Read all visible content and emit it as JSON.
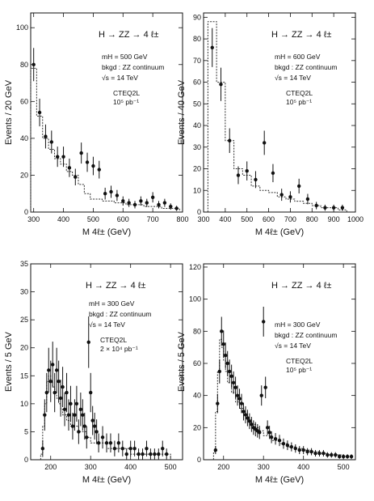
{
  "chart_data": [
    {
      "type": "scatter",
      "process": "H → ZZ → 4 ℓ±",
      "annotations": [
        "mH = 500 GeV",
        "bkgd : ZZ continuum",
        "√s = 14 TeV",
        "CTEQ2L",
        "10⁵ pb⁻¹"
      ],
      "xlabel": "M 4ℓ±  (GeV)",
      "ylabel": "Events / 20 GeV",
      "xlim": [
        290,
        800
      ],
      "ylim": [
        0,
        108
      ],
      "xticks": [
        300,
        400,
        500,
        600,
        700,
        800
      ],
      "yticks": [
        0,
        20,
        40,
        60,
        80,
        100
      ],
      "points": {
        "x": [
          300,
          320,
          340,
          360,
          380,
          400,
          420,
          440,
          460,
          480,
          500,
          520,
          540,
          560,
          580,
          600,
          620,
          640,
          660,
          680,
          700,
          720,
          740,
          760,
          780
        ],
        "y": [
          80,
          54,
          41,
          38,
          30,
          30,
          24,
          19,
          32,
          27,
          25,
          23,
          10,
          11,
          9,
          6,
          5,
          4,
          6,
          5,
          8,
          4,
          5,
          3,
          2
        ],
        "err": [
          9,
          7.5,
          6.5,
          6.2,
          5.5,
          5.5,
          5,
          4.5,
          5.7,
          5.2,
          5,
          4.8,
          3.2,
          3.3,
          3,
          2.5,
          2.2,
          2,
          2.5,
          2.2,
          2.8,
          2,
          2.2,
          1.7,
          1.4
        ]
      },
      "background": {
        "edges": [
          290,
          310,
          330,
          350,
          370,
          390,
          410,
          430,
          450,
          470,
          490,
          510,
          530,
          550,
          570,
          590,
          610,
          630,
          650,
          670,
          690,
          710,
          730,
          750,
          770,
          790
        ],
        "values": [
          78,
          52,
          40,
          34,
          29,
          26,
          22,
          20,
          15,
          10,
          7,
          7,
          6,
          6,
          5,
          5,
          4,
          4,
          4,
          3,
          3,
          3,
          2,
          2,
          2
        ]
      }
    },
    {
      "type": "scatter",
      "process": "H → ZZ → 4 ℓ±",
      "annotations": [
        "mH = 600 GeV",
        "bkgd : ZZ continuum",
        "√s = 14 TeV",
        "CTEQ2L",
        "10⁵ pb⁻¹"
      ],
      "xlabel": "M 4ℓ±  (GeV)",
      "ylabel": "Events / 40 GeV",
      "xlim": [
        300,
        1000
      ],
      "ylim": [
        0,
        92
      ],
      "xticks": [
        300,
        400,
        500,
        600,
        700,
        800,
        900,
        1000
      ],
      "yticks": [
        0,
        10,
        20,
        30,
        40,
        50,
        60,
        70,
        80,
        90
      ],
      "points": {
        "x": [
          340,
          380,
          420,
          460,
          500,
          540,
          580,
          620,
          660,
          700,
          740,
          780,
          820,
          860,
          900,
          940
        ],
        "y": [
          76,
          59,
          33,
          17,
          19,
          15,
          32,
          18,
          8,
          7,
          12,
          6,
          3,
          2,
          2,
          2
        ],
        "err": [
          9,
          7.7,
          5.7,
          4.1,
          4.4,
          3.9,
          5.6,
          4.2,
          2.8,
          2.6,
          3.4,
          2.4,
          1.7,
          1.4,
          1.4,
          1.4
        ]
      },
      "background": {
        "edges": [
          320,
          360,
          400,
          440,
          480,
          520,
          560,
          600,
          640,
          680,
          720,
          760,
          800,
          840,
          880,
          920,
          960
        ],
        "values": [
          88,
          60,
          33,
          20,
          17,
          12,
          10,
          9,
          7,
          6,
          5,
          4,
          3,
          2,
          2,
          1
        ]
      }
    },
    {
      "type": "scatter",
      "process": "H → ZZ → 4 ℓ±",
      "annotations": [
        "mH = 300 GeV",
        "bkgd : ZZ continuum",
        "√s = 14 TeV",
        "CTEQ2L",
        "2 × 10⁴ pb⁻¹"
      ],
      "xlabel": "M 4ℓ±  (GeV)",
      "ylabel": "Events / 5 GeV",
      "xlim": [
        150,
        530
      ],
      "ylim": [
        0,
        35
      ],
      "xticks": [
        200,
        300,
        400,
        500
      ],
      "yticks": [
        0,
        5,
        10,
        15,
        20,
        25,
        30,
        35
      ],
      "points": {
        "x": [
          180,
          185,
          190,
          195,
          200,
          205,
          210,
          215,
          220,
          225,
          230,
          235,
          240,
          245,
          250,
          255,
          260,
          265,
          270,
          275,
          280,
          285,
          290,
          295,
          300,
          305,
          310,
          315,
          320,
          330,
          340,
          350,
          360,
          370,
          380,
          390,
          400,
          410,
          420,
          430,
          440,
          450,
          460,
          470,
          480,
          490
        ],
        "y": [
          2,
          8,
          12,
          16,
          14,
          17,
          12,
          16,
          14,
          11,
          13,
          9,
          12,
          8,
          10,
          6,
          8,
          10,
          5,
          9,
          8,
          6,
          4,
          21,
          12,
          7,
          6,
          5,
          3,
          4,
          3,
          3,
          2,
          3,
          2,
          1,
          2,
          2,
          1,
          1,
          2,
          1,
          1,
          1,
          2,
          1
        ],
        "err": [
          1.5,
          2.8,
          3.5,
          4,
          3.7,
          4.1,
          3.5,
          4,
          3.7,
          3.3,
          3.6,
          3,
          3.5,
          2.8,
          3.2,
          2.4,
          2.8,
          3.2,
          2.2,
          3,
          2.8,
          2.4,
          2,
          4.6,
          3.5,
          2.6,
          2.4,
          2.2,
          1.7,
          2,
          1.7,
          1.7,
          1.4,
          1.7,
          1.4,
          1,
          1.4,
          1.4,
          1,
          1,
          1.4,
          1,
          1,
          1,
          1.4,
          1
        ]
      },
      "background": {
        "edges": [
          175,
          180,
          185,
          190,
          195,
          200,
          205,
          210,
          215,
          220,
          225,
          230,
          240,
          250,
          260,
          270,
          280,
          290,
          300,
          320,
          340,
          360,
          380,
          400,
          420,
          440,
          460,
          480,
          500
        ],
        "values": [
          1,
          6,
          10,
          14,
          15,
          14,
          13,
          12,
          11,
          10,
          9,
          8,
          7,
          6,
          6,
          5,
          5,
          4,
          3,
          3,
          2,
          2,
          2,
          1,
          1,
          1,
          1,
          1
        ]
      }
    },
    {
      "type": "scatter",
      "process": "H → ZZ → 4 ℓ±",
      "annotations": [
        "mH = 300 GeV",
        "bkgd : ZZ continuum",
        "√s = 14 TeV",
        "CTEQ2L",
        "10⁵ pb⁻¹"
      ],
      "xlabel": "M 4ℓ±  (GeV)",
      "ylabel": "Events / 5 GeV",
      "xlim": [
        150,
        530
      ],
      "ylim": [
        0,
        122
      ],
      "xticks": [
        200,
        300,
        400,
        500
      ],
      "yticks": [
        0,
        20,
        40,
        60,
        80,
        100,
        120
      ],
      "points": {
        "x": [
          180,
          185,
          190,
          195,
          200,
          205,
          210,
          215,
          220,
          225,
          230,
          235,
          240,
          245,
          250,
          255,
          260,
          265,
          270,
          275,
          280,
          285,
          290,
          295,
          300,
          305,
          310,
          315,
          320,
          330,
          340,
          350,
          360,
          370,
          380,
          390,
          400,
          410,
          420,
          430,
          440,
          450,
          460,
          470,
          480,
          490,
          500,
          510,
          520
        ],
        "y": [
          6,
          35,
          55,
          80,
          72,
          65,
          60,
          55,
          52,
          48,
          45,
          40,
          38,
          35,
          30,
          28,
          26,
          24,
          22,
          20,
          19,
          18,
          17,
          40,
          86,
          45,
          20,
          17,
          14,
          13,
          12,
          10,
          9,
          8,
          7,
          6,
          6,
          5,
          5,
          4,
          4,
          4,
          3,
          3,
          3,
          2,
          2,
          2,
          2
        ],
        "err": [
          2.5,
          6,
          7.5,
          9,
          8.5,
          8,
          7.7,
          7.4,
          7.2,
          7,
          6.7,
          6.3,
          6.2,
          6,
          5.5,
          5.3,
          5.1,
          4.9,
          4.7,
          4.5,
          4.4,
          4.2,
          4.1,
          6.3,
          9.3,
          6.7,
          4.5,
          4.1,
          3.7,
          3.6,
          3.5,
          3.2,
          3,
          2.8,
          2.6,
          2.5,
          2.5,
          2.2,
          2.2,
          2,
          2,
          2,
          1.7,
          1.7,
          1.7,
          1.4,
          1.4,
          1.4,
          1.4
        ]
      },
      "background": {
        "edges": [
          175,
          180,
          185,
          190,
          195,
          200,
          205,
          210,
          220,
          230,
          240,
          250,
          260,
          270,
          280,
          290,
          300,
          320,
          340,
          360,
          380,
          400,
          420,
          440,
          460,
          480,
          500,
          520
        ],
        "values": [
          5,
          30,
          55,
          75,
          70,
          62,
          55,
          48,
          42,
          36,
          32,
          28,
          25,
          22,
          20,
          18,
          15,
          12,
          10,
          8,
          7,
          6,
          5,
          4,
          3,
          3,
          2
        ]
      }
    }
  ]
}
